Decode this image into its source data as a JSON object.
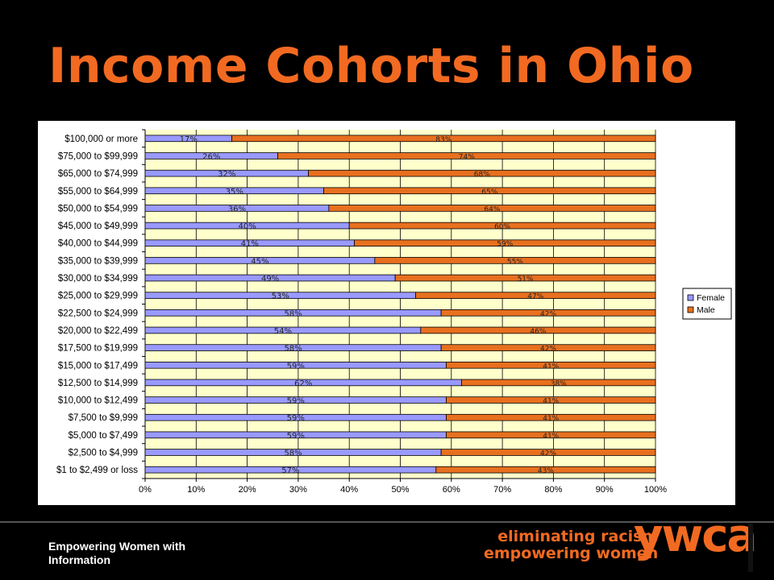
{
  "title": "Income Cohorts in Ohio",
  "footer": {
    "text": "Empowering Women with Information"
  },
  "tagline": {
    "line1": "eliminating racism",
    "line2": "empowering women"
  },
  "brand": {
    "name": "ywca"
  },
  "colors": {
    "accent": "#f26a21",
    "female": "#9999ff",
    "male": "#e8701f",
    "plot_bg": "#ffffcc"
  },
  "chart_data": {
    "type": "bar",
    "orientation": "horizontal",
    "stacked": "percent",
    "title": "",
    "xlabel": "",
    "ylabel": "",
    "xlim": [
      0,
      100
    ],
    "x_ticks": [
      "0%",
      "10%",
      "20%",
      "30%",
      "40%",
      "50%",
      "60%",
      "70%",
      "80%",
      "90%",
      "100%"
    ],
    "categories": [
      "$100,000 or more",
      "$75,000 to $99,999",
      "$65,000 to $74,999",
      "$55,000 to $64,999",
      "$50,000 to $54,999",
      "$45,000 to $49,999",
      "$40,000 to $44,999",
      "$35,000 to $39,999",
      "$30,000 to $34,999",
      "$25,000 to $29,999",
      "$22,500 to $24,999",
      "$20,000 to $22,499",
      "$17,500 to $19,999",
      "$15,000 to $17,499",
      "$12,500 to $14,999",
      "$10,000 to $12,499",
      "$7,500 to $9,999",
      "$5,000 to $7,499",
      "$2,500 to $4,999",
      "$1 to $2,499 or loss"
    ],
    "series": [
      {
        "name": "Female",
        "color": "#9999ff",
        "values": [
          17,
          26,
          32,
          35,
          36,
          40,
          41,
          45,
          49,
          53,
          58,
          54,
          58,
          59,
          62,
          59,
          59,
          59,
          58,
          57
        ],
        "labels": [
          "17%",
          "26%",
          "32%",
          "35%",
          "36%",
          "40%",
          "41%",
          "45%",
          "49%",
          "53%",
          "58%",
          "54%",
          "58%",
          "59%",
          "62%",
          "59%",
          "59%",
          "59%",
          "58%",
          "57%"
        ]
      },
      {
        "name": "Male",
        "color": "#e8701f",
        "values": [
          83,
          74,
          68,
          65,
          64,
          60,
          59,
          55,
          51,
          47,
          42,
          46,
          42,
          41,
          38,
          41,
          41,
          41,
          42,
          43
        ],
        "labels": [
          "83%",
          "74%",
          "68%",
          "65%",
          "64%",
          "60%",
          "59%",
          "55%",
          "51%",
          "47%",
          "42%",
          "46%",
          "42%",
          "41%",
          "38%",
          "41%",
          "41%",
          "41%",
          "42%",
          "43%"
        ]
      }
    ],
    "grid": true,
    "legend_position": "right"
  }
}
